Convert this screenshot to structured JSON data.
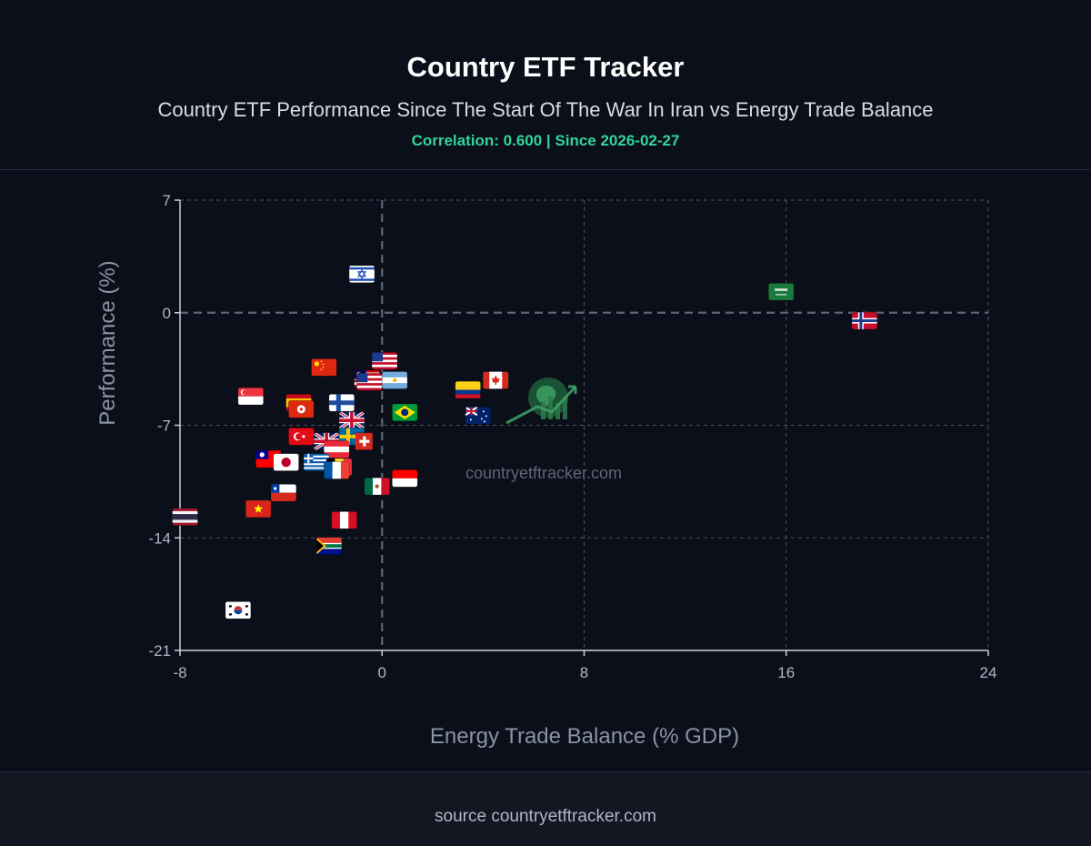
{
  "header": {
    "title": "Country ETF Tracker",
    "subtitle": "Country ETF Performance Since The Start Of The War In Iran vs Energy Trade Balance",
    "correlation": "Correlation: 0.600 | Since 2026-02-27"
  },
  "watermark": "countryetftracker.com",
  "footer": {
    "source": "source countryetftracker.com"
  },
  "colors": {
    "background": "#0b0f1a",
    "accent_green": "#34d399",
    "grid": "#4b5566",
    "axis_text": "#aeb7c6"
  },
  "chart_data": {
    "type": "scatter",
    "title": "",
    "xlabel": "Energy Trade Balance (% GDP)",
    "ylabel": "Performance (%)",
    "xlim": [
      -8,
      24
    ],
    "ylim": [
      -21,
      7
    ],
    "xticks": [
      -8,
      0,
      8,
      16,
      24
    ],
    "yticks": [
      7,
      0,
      -7,
      -14,
      -21
    ],
    "grid": true,
    "marker_style": "country-flag-icons",
    "points": [
      {
        "country": "Israel",
        "flag": "il",
        "x": -0.8,
        "y": 2.4
      },
      {
        "country": "Saudi Arabia",
        "flag": "sa",
        "x": 15.8,
        "y": 1.3
      },
      {
        "country": "Norway",
        "flag": "no",
        "x": 19.1,
        "y": -0.5
      },
      {
        "country": "United States",
        "flag": "us",
        "x": 0.1,
        "y": -3.0
      },
      {
        "country": "China",
        "flag": "cn",
        "x": -2.3,
        "y": -3.4
      },
      {
        "country": "Malaysia",
        "flag": "my",
        "x": -0.6,
        "y": -4.1
      },
      {
        "country": "United States",
        "flag": "us",
        "x": -0.5,
        "y": -4.3
      },
      {
        "country": "Argentina",
        "flag": "ar",
        "x": 0.5,
        "y": -4.2
      },
      {
        "country": "Canada",
        "flag": "ca",
        "x": 4.5,
        "y": -4.2
      },
      {
        "country": "Colombia",
        "flag": "co",
        "x": 3.4,
        "y": -4.8
      },
      {
        "country": "Singapore",
        "flag": "sg",
        "x": -5.2,
        "y": -5.2
      },
      {
        "country": "Finland",
        "flag": "fi",
        "x": -1.6,
        "y": -5.6
      },
      {
        "country": "Spain",
        "flag": "es",
        "x": -3.3,
        "y": -5.6
      },
      {
        "country": "Hong Kong",
        "flag": "hk",
        "x": -3.2,
        "y": -6.0
      },
      {
        "country": "Brazil",
        "flag": "br",
        "x": 0.9,
        "y": -6.2
      },
      {
        "country": "Australia",
        "flag": "au",
        "x": 3.8,
        "y": -6.4
      },
      {
        "country": "United Kingdom",
        "flag": "gb",
        "x": -1.2,
        "y": -6.7
      },
      {
        "country": "Turkey",
        "flag": "tr",
        "x": -3.2,
        "y": -7.7
      },
      {
        "country": "Sweden",
        "flag": "se",
        "x": -1.2,
        "y": -7.7
      },
      {
        "country": "Switzerland",
        "flag": "ch",
        "x": -0.7,
        "y": -8.0
      },
      {
        "country": "United Kingdom",
        "flag": "gb",
        "x": -2.2,
        "y": -8.0
      },
      {
        "country": "Austria",
        "flag": "at",
        "x": -1.8,
        "y": -8.5
      },
      {
        "country": "Taiwan",
        "flag": "tw",
        "x": -4.5,
        "y": -9.1
      },
      {
        "country": "Japan",
        "flag": "jp",
        "x": -3.8,
        "y": -9.3
      },
      {
        "country": "Greece",
        "flag": "gr",
        "x": -2.6,
        "y": -9.3
      },
      {
        "country": "Belgium",
        "flag": "be",
        "x": -1.7,
        "y": -9.6
      },
      {
        "country": "France",
        "flag": "fr",
        "x": -1.8,
        "y": -9.8
      },
      {
        "country": "Indonesia",
        "flag": "id",
        "x": 0.9,
        "y": -10.3
      },
      {
        "country": "Mexico",
        "flag": "mx",
        "x": -0.2,
        "y": -10.8
      },
      {
        "country": "Chile",
        "flag": "cl",
        "x": -3.9,
        "y": -11.2
      },
      {
        "country": "Vietnam",
        "flag": "vn",
        "x": -4.9,
        "y": -12.2
      },
      {
        "country": "Thailand",
        "flag": "th",
        "x": -7.8,
        "y": -12.7
      },
      {
        "country": "Peru",
        "flag": "pe",
        "x": -1.5,
        "y": -12.9
      },
      {
        "country": "South Africa",
        "flag": "za",
        "x": -2.1,
        "y": -14.5
      },
      {
        "country": "South Korea",
        "flag": "kr",
        "x": -5.7,
        "y": -18.5
      }
    ]
  }
}
